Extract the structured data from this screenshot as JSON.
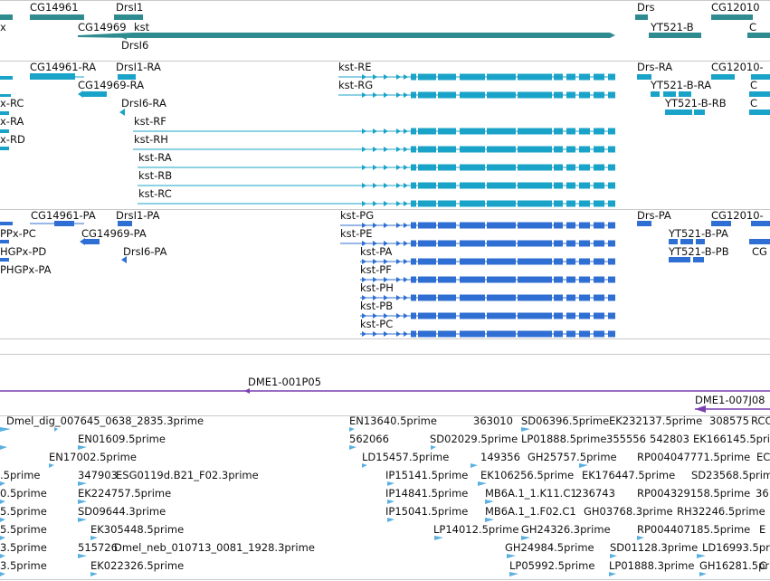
{
  "colors": {
    "gene": "#2e8b8f",
    "transcript": "#1aa3c8",
    "protein": "#2f6fd3",
    "clone": "#7a3fb0",
    "est": "#5ab0e0",
    "separator": "#c9c9c9"
  },
  "gene_track": {
    "labels": [
      "x",
      "CG14961",
      "CG14969",
      "DrsI1",
      "kst",
      "DrsI6",
      "Drs",
      "YT521-B",
      "CG12010",
      "C"
    ]
  },
  "transcript_track": {
    "labels": [
      "CG14961-RA",
      "DrsI1-RA",
      "CG14969-RA",
      "DrsI6-RA",
      "kst-RE",
      "kst-RG",
      "kst-RF",
      "kst-RH",
      "kst-RA",
      "kst-RB",
      "kst-RC",
      "x-RC",
      "x-RA",
      "x-RD",
      "Drs-RA",
      "CG12010-",
      "YT521-B-RA",
      "YT521-B-RB",
      "C",
      "C"
    ]
  },
  "protein_track": {
    "labels": [
      "CG14961-PA",
      "DrsI1-PA",
      "CG14969-PA",
      "DrsI6-PA",
      "PPx-PC",
      "HGPx-PD",
      "PHGPx-PA",
      "kst-PG",
      "kst-PE",
      "kst-PA",
      "kst-PF",
      "kst-PH",
      "kst-PB",
      "kst-PC",
      "Drs-PA",
      "CG12010-",
      "YT521-B-PA",
      "YT521-B-PB",
      "CG"
    ]
  },
  "clone_track": {
    "labels": [
      "DME1-001P05",
      "DME1-007J08"
    ]
  },
  "est_track": {
    "labels": [
      "Dmel_dig_007645_0638_2835.3prime",
      "EN13640.5prime",
      "363010",
      "SD06396.5prime",
      "EK232137.5prime",
      "308575",
      "RCC",
      "EN01609.5prime",
      "562066",
      "SD02029.5prime",
      "LP01888.5prime",
      "355556",
      "542803",
      "EK166145.5prime",
      "EN17002.5prime",
      "LD15457.5prime",
      "149356",
      "GH25757.5prime",
      "RP004047771.5prime",
      "EC",
      ".5prime",
      "347903",
      "ESG0119d.B21_F02.3prime",
      "IP15141.5prime",
      "EK106256.5prime",
      "EK176447.5prime",
      "SD23568.5prime",
      "0.5prime",
      "EK224757.5prime",
      "IP14841.5prime",
      "MB6A.1_1.K11.C1",
      "236743",
      "RP004329158.5prime",
      "36",
      "5.5prime",
      "SD09644.3prime",
      "IP15041.5prime",
      "MB6A.1_1.F02.C1",
      "GH03768.3prime",
      "RH32246.5prime",
      "5.5prime",
      "EK305448.5prime",
      "LP14012.5prime",
      "GH24326.3prime",
      "RP004407185.5prime",
      "E",
      "3.5prime",
      "515726",
      "Dmel_neb_010713_0081_1928.3prime",
      "GH24984.5prime",
      "SD01128.3prime",
      "LD16993.5prime",
      "3.5prime",
      "EK022326.5prime",
      "LP05992.5prime",
      "LP01888.3prime",
      "GH16281.5prime",
      "C"
    ]
  }
}
